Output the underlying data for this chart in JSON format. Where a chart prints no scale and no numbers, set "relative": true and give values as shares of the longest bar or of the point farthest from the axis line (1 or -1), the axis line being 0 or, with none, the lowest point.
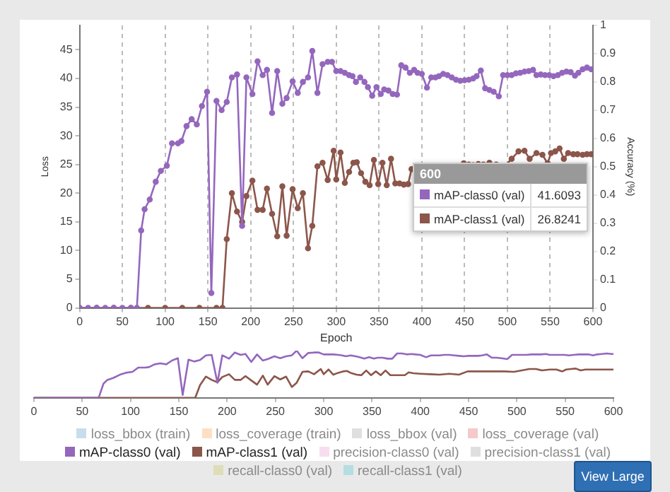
{
  "chart_data": [
    {
      "type": "line",
      "xlabel": "Epoch",
      "ylabel": "Loss",
      "y2label": "Accuracy (%)",
      "xlim": [
        0,
        600
      ],
      "xticks": [
        0,
        50,
        100,
        150,
        200,
        250,
        300,
        350,
        400,
        450,
        500,
        550,
        600
      ],
      "ylim": [
        0,
        49.25
      ],
      "yticks": [
        0,
        5,
        10,
        15,
        20,
        25,
        30,
        35,
        40,
        45
      ],
      "y2lim": [
        0,
        1
      ],
      "y2ticks": [
        0,
        0.1,
        0.2,
        0.3,
        0.4,
        0.5,
        0.6,
        0.7,
        0.8,
        0.9,
        1
      ],
      "grid": "x",
      "marker": "circle",
      "legend": "bottom",
      "annotations": [
        "600",
        "41.6093",
        "26.8241",
        "View Large"
      ],
      "series": [
        {
          "name": "loss_bbox (train)",
          "color": "#1f77b4"
        },
        {
          "name": "loss_coverage (train)",
          "color": "#ff7f0e"
        },
        {
          "name": "loss_bbox (val)",
          "color": "#7f7f7f"
        },
        {
          "name": "loss_coverage (val)",
          "color": "#d62728"
        },
        {
          "name": "mAP-class0 (val)",
          "color": "#9467bd",
          "x": [
            0,
            10,
            20,
            30,
            40,
            50,
            60,
            67,
            72,
            76,
            82,
            89,
            95,
            102,
            108,
            115,
            119,
            125,
            131,
            137,
            143,
            149,
            154,
            160,
            166,
            172,
            178,
            184,
            190,
            195,
            202,
            208,
            214,
            219,
            225,
            231,
            237,
            242,
            249,
            255,
            261,
            267,
            272,
            278,
            284,
            290,
            295,
            300,
            305,
            310,
            315,
            319,
            323,
            328,
            333,
            337,
            342,
            347,
            352,
            356,
            361,
            366,
            371,
            376,
            381,
            386,
            391,
            395,
            400,
            406,
            411,
            416,
            420,
            425,
            430,
            435,
            440,
            445,
            450,
            455,
            460,
            464,
            469,
            474,
            479,
            484,
            490,
            495,
            500,
            505,
            510,
            515,
            520,
            525,
            530,
            534,
            539,
            544,
            549,
            554,
            559,
            564,
            569,
            574,
            579,
            583,
            588,
            593,
            598,
            600
          ],
          "values": [
            0,
            0,
            0,
            0,
            0,
            0,
            0,
            0,
            13.5,
            17.2,
            18.9,
            22,
            23.9,
            24.8,
            28.7,
            28.7,
            29.1,
            31.7,
            32.9,
            32,
            35.2,
            37.7,
            2.6,
            36.1,
            34.5,
            35.9,
            40.2,
            40.7,
            14.3,
            40.2,
            37.3,
            43,
            40.6,
            41.5,
            34,
            41.3,
            35.6,
            36.6,
            39.5,
            37.5,
            39.4,
            40.2,
            44.8,
            37.5,
            42.5,
            42.9,
            42.9,
            41.3,
            41.3,
            41,
            40.6,
            40.4,
            39.4,
            40.2,
            39.4,
            38.5,
            37,
            38.5,
            37.3,
            38.1,
            37.9,
            37.3,
            37.2,
            42.3,
            41.9,
            41,
            41.5,
            41,
            40.8,
            38.4,
            40.2,
            40.2,
            40.4,
            40.8,
            40.6,
            40.2,
            39.8,
            39.6,
            39.7,
            39.8,
            40,
            40.4,
            41.4,
            38.3,
            38,
            37.7,
            36.9,
            40.6,
            40.6,
            40.6,
            40.9,
            41,
            41.2,
            41.3,
            41.5,
            40.6,
            40.7,
            40.6,
            40.6,
            40.4,
            40.6,
            41,
            41.2,
            41.1,
            40.5,
            41,
            41.6,
            41.9,
            41.6,
            41.6093
          ]
        },
        {
          "name": "mAP-class1 (val)",
          "color": "#8c564b",
          "x": [
            0,
            20,
            40,
            60,
            80,
            100,
            120,
            140,
            160,
            167,
            172,
            178,
            184,
            190,
            195,
            202,
            208,
            214,
            219,
            225,
            231,
            237,
            242,
            249,
            255,
            261,
            267,
            272,
            278,
            284,
            290,
            297,
            300,
            305,
            310,
            315,
            320,
            324,
            329,
            334,
            339,
            344,
            349,
            354,
            359,
            364,
            369,
            374,
            379,
            384,
            388,
            393,
            400,
            410,
            420,
            430,
            440,
            449,
            455,
            460,
            466,
            472,
            479,
            487,
            497,
            505,
            513,
            520,
            526,
            534,
            541,
            547,
            551,
            556,
            561,
            566,
            571,
            577,
            582,
            588,
            593,
            598,
            600
          ],
          "values": [
            0,
            0,
            0,
            0,
            0,
            0,
            0,
            0,
            0,
            0,
            12,
            20,
            16.8,
            15,
            19.5,
            22.2,
            17.1,
            17.1,
            20.8,
            16.4,
            12.5,
            21.2,
            12.6,
            20.7,
            17.4,
            20,
            10.4,
            14.3,
            24.7,
            25.3,
            22.3,
            27.4,
            22.4,
            27.1,
            21.8,
            23.7,
            25.3,
            25.4,
            23.5,
            22,
            21.4,
            25.8,
            21.6,
            25.3,
            21.4,
            26,
            21.7,
            21.7,
            21.5,
            21.6,
            24.2,
            23.5,
            null,
            null,
            null,
            null,
            null,
            25.2,
            25,
            24.9,
            25.1,
            25,
            25.3,
            25,
            24.7,
            26,
            27.3,
            27.4,
            26,
            27,
            26.7,
            25.2,
            27,
            27.3,
            27.8,
            26,
            27,
            26.8,
            26.8,
            26.7,
            26.8,
            26.8,
            26.8241
          ]
        },
        {
          "name": "precision-class0 (val)",
          "color": "#e377c2"
        },
        {
          "name": "precision-class1 (val)",
          "color": "#7f7f7f"
        },
        {
          "name": "recall-class0 (val)",
          "color": "#bcbd22"
        },
        {
          "name": "recall-class1 (val)",
          "color": "#17becf"
        }
      ]
    },
    {
      "type": "line",
      "xlim": [
        0,
        600
      ],
      "xticks": [
        0,
        50,
        100,
        150,
        200,
        250,
        300,
        350,
        400,
        450,
        500,
        550,
        600
      ],
      "relative": true,
      "tick_labels": "x",
      "marker": "none",
      "series": [
        {
          "color": "#9467bd",
          "x": [
            0,
            10,
            20,
            30,
            40,
            50,
            60,
            67,
            72,
            76,
            82,
            89,
            95,
            102,
            108,
            115,
            119,
            125,
            131,
            137,
            143,
            149,
            154,
            160,
            166,
            172,
            178,
            184,
            190,
            195,
            202,
            208,
            214,
            219,
            225,
            231,
            237,
            242,
            249,
            255,
            261,
            267,
            272,
            278,
            284,
            290,
            295,
            300,
            305,
            310,
            315,
            319,
            323,
            328,
            333,
            337,
            342,
            347,
            352,
            356,
            361,
            366,
            371,
            376,
            381,
            386,
            391,
            395,
            400,
            406,
            411,
            416,
            420,
            425,
            430,
            435,
            440,
            445,
            450,
            455,
            460,
            464,
            469,
            474,
            479,
            484,
            490,
            495,
            500,
            505,
            510,
            515,
            520,
            525,
            530,
            534,
            539,
            544,
            549,
            554,
            559,
            564,
            569,
            574,
            579,
            583,
            588,
            593,
            598,
            600
          ],
          "values": [
            0,
            0,
            0,
            0,
            0,
            0,
            0,
            0,
            0.3,
            0.38,
            0.42,
            0.49,
            0.53,
            0.55,
            0.64,
            0.64,
            0.65,
            0.71,
            0.73,
            0.71,
            0.79,
            0.84,
            0.06,
            0.81,
            0.77,
            0.8,
            0.9,
            0.91,
            0.32,
            0.9,
            0.83,
            0.96,
            0.91,
            0.93,
            0.76,
            0.92,
            0.79,
            0.82,
            0.88,
            0.84,
            0.88,
            0.9,
            1,
            0.84,
            0.95,
            0.96,
            0.96,
            0.92,
            0.92,
            0.92,
            0.91,
            0.9,
            0.88,
            0.9,
            0.88,
            0.86,
            0.83,
            0.86,
            0.83,
            0.85,
            0.85,
            0.83,
            0.83,
            0.94,
            0.94,
            0.92,
            0.93,
            0.92,
            0.91,
            0.86,
            0.9,
            0.9,
            0.9,
            0.91,
            0.91,
            0.9,
            0.89,
            0.88,
            0.89,
            0.89,
            0.89,
            0.9,
            0.92,
            0.85,
            0.85,
            0.84,
            0.82,
            0.91,
            0.91,
            0.91,
            0.91,
            0.92,
            0.92,
            0.92,
            0.93,
            0.91,
            0.91,
            0.91,
            0.91,
            0.9,
            0.91,
            0.92,
            0.92,
            0.92,
            0.9,
            0.92,
            0.93,
            0.94,
            0.93,
            0.93
          ]
        },
        {
          "color": "#8c564b",
          "x": [
            0,
            20,
            40,
            60,
            80,
            100,
            120,
            140,
            160,
            167,
            172,
            178,
            184,
            190,
            195,
            202,
            208,
            214,
            219,
            225,
            231,
            237,
            242,
            249,
            255,
            261,
            267,
            272,
            278,
            284,
            290,
            297,
            300,
            305,
            310,
            315,
            320,
            324,
            329,
            334,
            339,
            344,
            349,
            354,
            359,
            364,
            369,
            374,
            379,
            384,
            388,
            393,
            400,
            410,
            420,
            430,
            440,
            449,
            455,
            460,
            466,
            472,
            479,
            487,
            497,
            505,
            513,
            520,
            526,
            534,
            541,
            547,
            551,
            556,
            561,
            566,
            571,
            577,
            582,
            588,
            593,
            598,
            600
          ],
          "values": [
            0,
            0,
            0,
            0,
            0,
            0,
            0,
            0,
            0,
            0,
            0.27,
            0.45,
            0.38,
            0.33,
            0.44,
            0.5,
            0.38,
            0.38,
            0.46,
            0.37,
            0.28,
            0.47,
            0.28,
            0.46,
            0.39,
            0.45,
            0.23,
            0.32,
            0.55,
            0.56,
            0.5,
            0.61,
            0.5,
            0.6,
            0.49,
            0.53,
            0.56,
            0.57,
            0.52,
            0.49,
            0.48,
            0.58,
            0.48,
            0.56,
            0.48,
            0.58,
            0.48,
            0.48,
            0.48,
            0.48,
            0.54,
            0.52,
            0.51,
            0.5,
            0.49,
            0.51,
            0.49,
            0.56,
            0.56,
            0.56,
            0.56,
            0.56,
            0.56,
            0.56,
            0.55,
            0.58,
            0.61,
            0.61,
            0.58,
            0.6,
            0.6,
            0.56,
            0.6,
            0.61,
            0.62,
            0.58,
            0.6,
            0.6,
            0.6,
            0.6,
            0.6,
            0.6,
            0.6
          ]
        }
      ]
    }
  ]
}
